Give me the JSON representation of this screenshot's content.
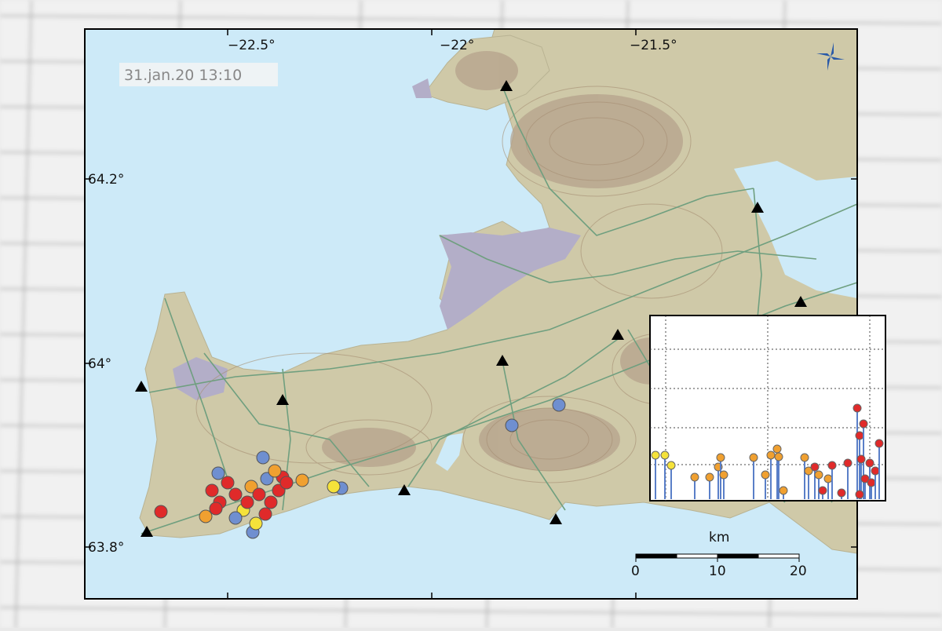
{
  "map": {
    "timestamp": "31.jan.20  13:10",
    "lon_labels": [
      "−22.5°",
      "−22°",
      "−21.5°"
    ],
    "lat_labels": [
      "64.2°",
      "64°",
      "63.8°"
    ],
    "scale": {
      "unit": "km",
      "ticks": [
        "0",
        "10",
        "20"
      ]
    }
  }
}
